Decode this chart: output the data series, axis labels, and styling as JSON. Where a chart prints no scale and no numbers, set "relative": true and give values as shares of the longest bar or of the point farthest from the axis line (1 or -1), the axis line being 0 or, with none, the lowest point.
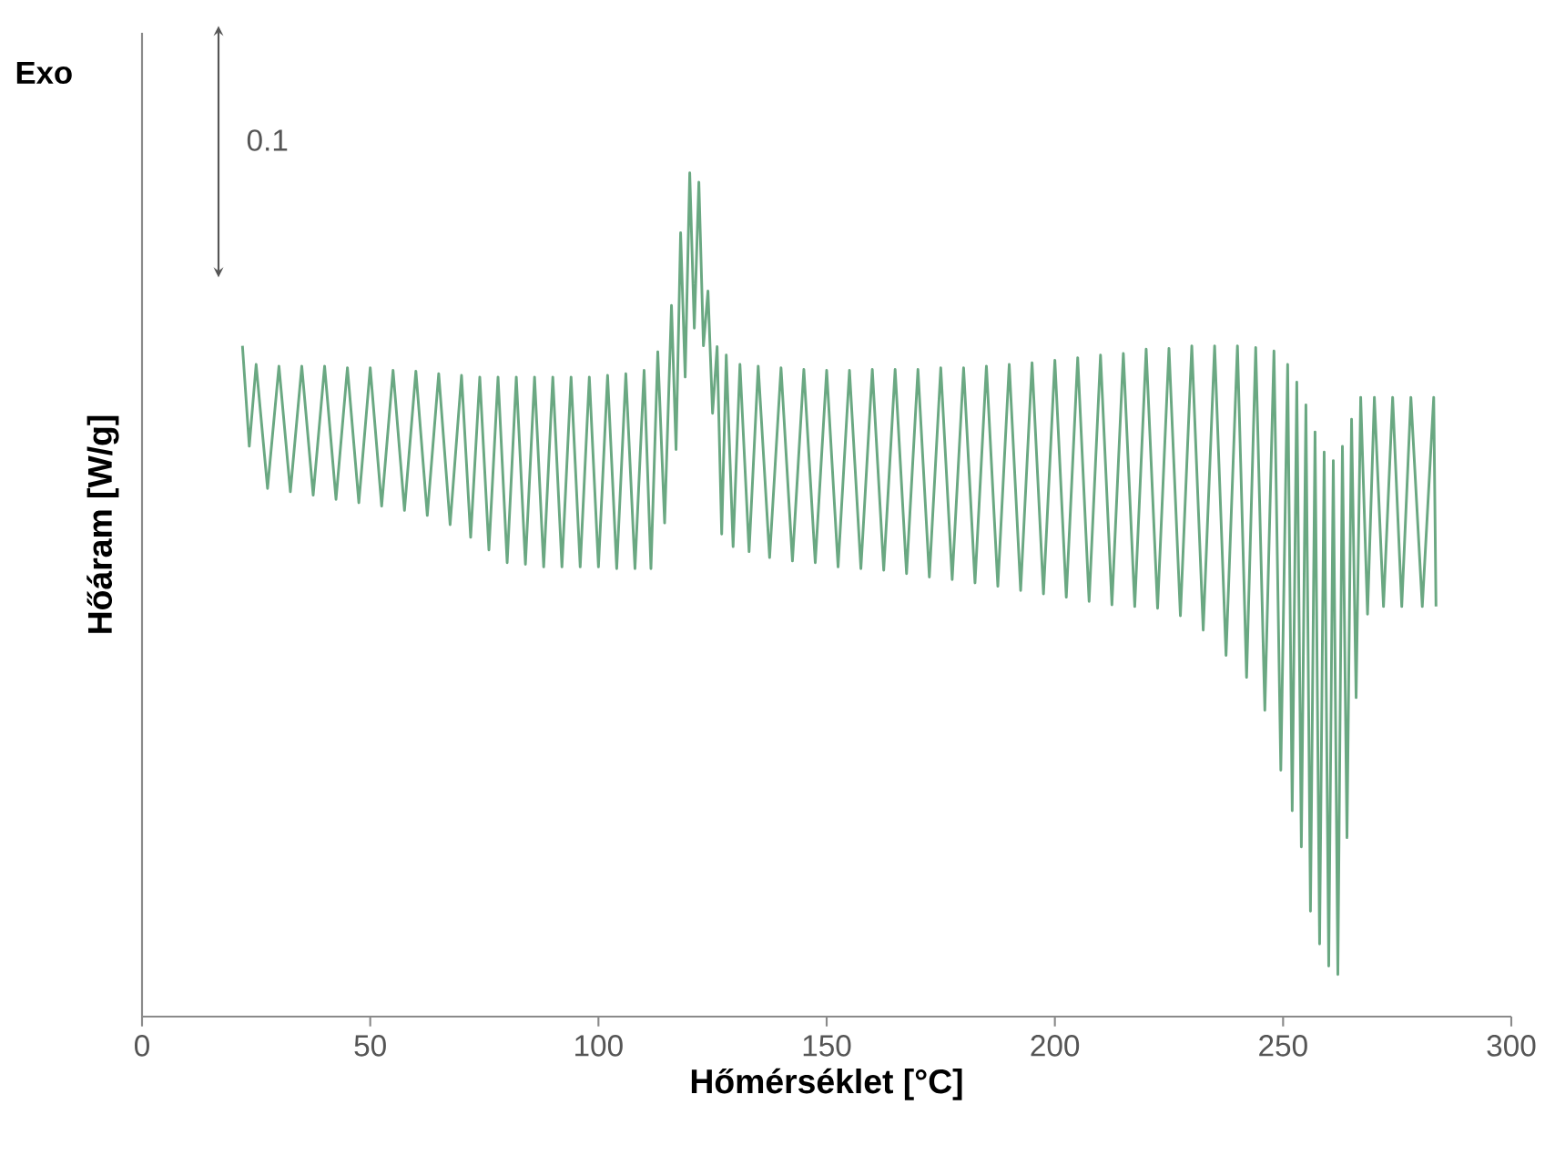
{
  "chart_data": {
    "type": "line",
    "relative": true,
    "color": "#6aa882",
    "xlabel": "Hőmérséklet [°C]",
    "ylabel": "Hőáram [W/g]",
    "annotations": [
      "Exo",
      "0.1"
    ],
    "xlim": [
      0,
      300
    ],
    "xticks": [
      0,
      50,
      100,
      150,
      200,
      250,
      300
    ],
    "tick_labels": "x",
    "x": [
      22,
      23.5,
      25,
      27.5,
      30,
      32.5,
      35,
      37.5,
      40,
      42.5,
      45,
      47.5,
      50,
      52.5,
      55,
      57.5,
      60,
      62.5,
      65,
      67.5,
      70,
      72,
      74,
      76,
      78,
      80,
      82,
      84,
      86,
      88,
      90,
      92,
      94,
      96,
      98,
      100,
      102,
      104,
      106,
      108,
      110,
      111.5,
      113,
      114.5,
      116,
      117,
      118,
      119,
      120,
      121,
      122,
      123,
      124,
      125,
      126,
      127,
      128,
      129.5,
      131,
      133,
      135,
      137.5,
      140,
      142.5,
      145,
      147.5,
      150,
      152.5,
      155,
      157.5,
      160,
      162.5,
      165,
      167.5,
      170,
      172.5,
      175,
      177.5,
      180,
      182.5,
      185,
      187.5,
      190,
      192.5,
      195,
      197.5,
      200,
      202.5,
      205,
      207.5,
      210,
      212.5,
      215,
      217.5,
      220,
      222.5,
      225,
      227.5,
      230,
      232.5,
      235,
      237.5,
      240,
      242,
      244,
      246,
      248,
      249.5,
      251,
      252,
      253,
      254,
      255,
      256,
      257,
      258,
      259,
      260,
      261,
      262,
      263,
      264,
      265,
      266,
      267,
      268.5,
      270,
      272,
      274,
      276,
      278,
      280.5,
      283,
      283.5
    ],
    "values": [
      0.795,
      0.676,
      0.773,
      0.626,
      0.771,
      0.622,
      0.771,
      0.618,
      0.771,
      0.613,
      0.769,
      0.609,
      0.769,
      0.605,
      0.766,
      0.6,
      0.765,
      0.594,
      0.762,
      0.583,
      0.76,
      0.568,
      0.758,
      0.553,
      0.758,
      0.538,
      0.758,
      0.536,
      0.758,
      0.533,
      0.758,
      0.533,
      0.758,
      0.533,
      0.758,
      0.533,
      0.76,
      0.531,
      0.762,
      0.531,
      0.766,
      0.531,
      0.788,
      0.585,
      0.843,
      0.672,
      0.929,
      0.758,
      1.0,
      0.816,
      0.989,
      0.795,
      0.86,
      0.715,
      0.794,
      0.572,
      0.784,
      0.557,
      0.773,
      0.551,
      0.771,
      0.544,
      0.769,
      0.54,
      0.767,
      0.538,
      0.766,
      0.533,
      0.766,
      0.531,
      0.767,
      0.529,
      0.767,
      0.525,
      0.767,
      0.521,
      0.769,
      0.518,
      0.769,
      0.514,
      0.771,
      0.51,
      0.773,
      0.505,
      0.775,
      0.501,
      0.778,
      0.497,
      0.781,
      0.492,
      0.784,
      0.488,
      0.786,
      0.486,
      0.791,
      0.484,
      0.792,
      0.475,
      0.795,
      0.458,
      0.795,
      0.428,
      0.795,
      0.402,
      0.793,
      0.363,
      0.789,
      0.292,
      0.773,
      0.244,
      0.752,
      0.201,
      0.725,
      0.125,
      0.693,
      0.086,
      0.669,
      0.06,
      0.659,
      0.05,
      0.676,
      0.212,
      0.708,
      0.378,
      0.734,
      0.477,
      0.734,
      0.486,
      0.734,
      0.486,
      0.734,
      0.486,
      0.734,
      0.486
    ]
  }
}
